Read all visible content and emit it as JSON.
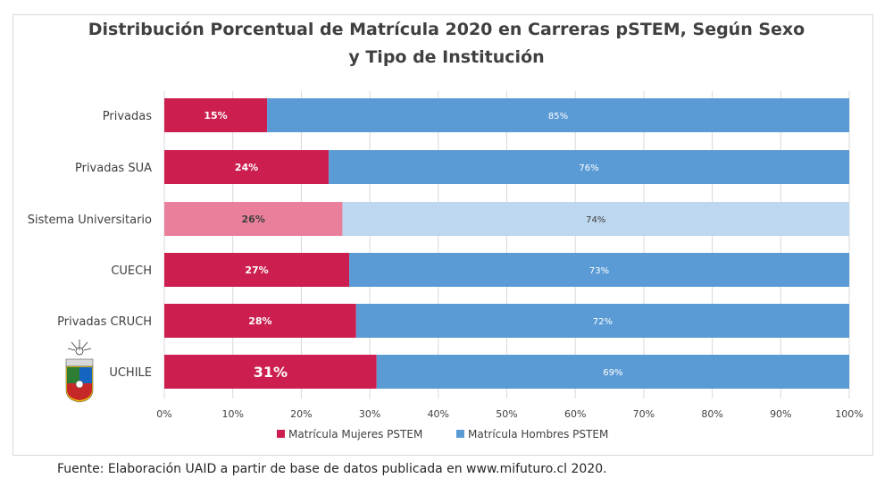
{
  "title_line1": "Distribución Porcentual de Matrícula 2020 en Carreras pSTEM, Según Sexo",
  "title_line2": "y Tipo de Institución",
  "footer": "Fuente: Elaboración UAID a partir de base de datos publicada en www.mifuturo.cl 2020.",
  "colors": {
    "women": "#cc1f4f",
    "men": "#5b9bd5",
    "women_highlight": "#ea7f9b",
    "men_highlight": "#bdd7ee",
    "grid": "#d9d9d9"
  },
  "chart_data": {
    "type": "bar",
    "orientation": "horizontal",
    "stacked": true,
    "title": "Distribución Porcentual de Matrícula 2020 en Carreras pSTEM, Según Sexo y Tipo de Institución",
    "categories": [
      "Privadas",
      "Privadas SUA",
      "Sistema Universitario",
      "CUECH",
      "Privadas CRUCH",
      "UCHILE"
    ],
    "highlighted_category": "Sistema Universitario",
    "series": [
      {
        "name": "Matrícula Mujeres PSTEM",
        "values": [
          15,
          24,
          26,
          27,
          28,
          31
        ],
        "labels": [
          "15%",
          "24%",
          "26%",
          "27%",
          "28%",
          "31%"
        ]
      },
      {
        "name": "Matrícula Hombres PSTEM",
        "values": [
          85,
          76,
          74,
          73,
          72,
          69
        ],
        "labels": [
          "85%",
          "76%",
          "74%",
          "73%",
          "72%",
          "69%"
        ]
      }
    ],
    "x_ticks": [
      "0%",
      "10%",
      "20%",
      "30%",
      "40%",
      "50%",
      "60%",
      "70%",
      "80%",
      "90%",
      "100%"
    ],
    "xlim": [
      0,
      100
    ],
    "grid": true,
    "legend_position": "bottom"
  }
}
